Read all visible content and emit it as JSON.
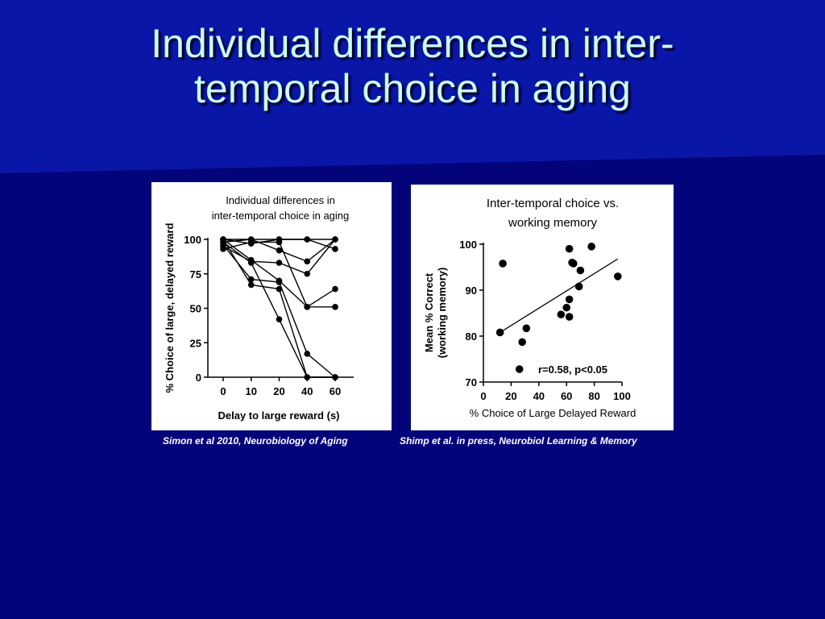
{
  "slide": {
    "title_line1": "Individual differences in inter-",
    "title_line2": "temporal choice in aging",
    "caption_left": "Simon et al 2010, Neurobiology of Aging",
    "caption_right": "Shimp et al. in press, Neurobiol Learning & Memory",
    "colors": {
      "background": "#03037a",
      "header": "#0a16a8",
      "title_text": "#ccffff"
    }
  },
  "chart_data": [
    {
      "type": "line",
      "title_line1": "Individual differences in",
      "title_line2": "inter-temporal choice in aging",
      "xlabel": "Delay to large reward (s)",
      "ylabel": "% Choice of large, delayed reward",
      "categories": [
        "0",
        "10",
        "20",
        "40",
        "60"
      ],
      "yticks": [
        0,
        25,
        50,
        75,
        100
      ],
      "ylim": [
        0,
        100
      ],
      "grid": false,
      "series": [
        {
          "values": [
            100,
            100,
            100,
            100,
            93
          ]
        },
        {
          "values": [
            100,
            97,
            100,
            100,
            100
          ]
        },
        {
          "values": [
            98,
            100,
            92,
            84,
            100
          ]
        },
        {
          "values": [
            95,
            84,
            83,
            75,
            100
          ]
        },
        {
          "values": [
            93,
            98,
            98,
            51,
            51
          ]
        },
        {
          "values": [
            100,
            85,
            70,
            51,
            64
          ]
        },
        {
          "values": [
            96,
            71,
            69,
            17,
            0
          ]
        },
        {
          "values": [
            100,
            67,
            64,
            0,
            0
          ]
        },
        {
          "values": [
            98,
            83,
            42,
            0,
            0
          ]
        }
      ]
    },
    {
      "type": "scatter",
      "title_line1": "Inter-temporal choice vs.",
      "title_line2": "working memory",
      "xlabel": "% Choice of Large Delayed Reward",
      "ylabel_line1": "Mean % Correct",
      "ylabel_line2": "(working memory)",
      "xticks": [
        0,
        20,
        40,
        60,
        80,
        100
      ],
      "yticks": [
        70,
        80,
        90,
        100
      ],
      "xlim": [
        0,
        100
      ],
      "ylim": [
        70,
        100
      ],
      "annotation": "r=0.58, p<0.05",
      "regression": {
        "x1": 12,
        "y1": 80.8,
        "x2": 97,
        "y2": 96.8
      },
      "points": [
        {
          "x": 12,
          "y": 80.8
        },
        {
          "x": 14,
          "y": 95.8
        },
        {
          "x": 26,
          "y": 72.8
        },
        {
          "x": 28,
          "y": 78.7
        },
        {
          "x": 31,
          "y": 81.7
        },
        {
          "x": 56,
          "y": 84.7
        },
        {
          "x": 60,
          "y": 86.2
        },
        {
          "x": 62,
          "y": 88.0
        },
        {
          "x": 62,
          "y": 84.2
        },
        {
          "x": 62,
          "y": 99.0
        },
        {
          "x": 64,
          "y": 96.0
        },
        {
          "x": 65,
          "y": 95.8
        },
        {
          "x": 69,
          "y": 90.8
        },
        {
          "x": 70,
          "y": 94.3
        },
        {
          "x": 78,
          "y": 99.5
        },
        {
          "x": 97,
          "y": 93.0
        }
      ]
    }
  ]
}
